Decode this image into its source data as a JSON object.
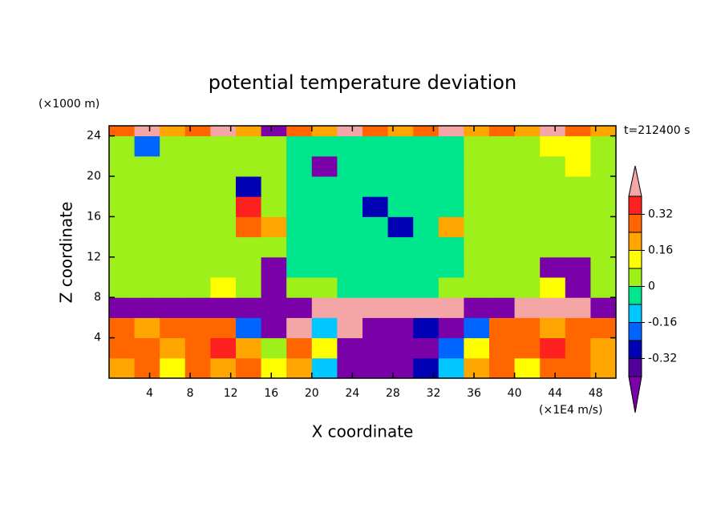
{
  "chart_data": {
    "type": "heatmap",
    "title": "potential temperature deviation",
    "y_unit": "(×1000 m)",
    "x_unit": "(×1E4 m/s)",
    "time_label": "t=212400 s",
    "xlabel": "X coordinate",
    "ylabel": "Z coordinate",
    "xlim": [
      0,
      50
    ],
    "ylim": [
      0,
      25
    ],
    "xticks": [
      4,
      8,
      12,
      16,
      20,
      24,
      28,
      32,
      36,
      40,
      44,
      48
    ],
    "yticks": [
      4,
      8,
      12,
      16,
      20,
      24
    ],
    "x": [
      1.25,
      3.75,
      6.25,
      8.75,
      11.25,
      13.75,
      16.25,
      18.75,
      21.25,
      23.75,
      26.25,
      28.75,
      31.25,
      33.75,
      36.25,
      38.75,
      41.25,
      43.75,
      46.25,
      48.75
    ],
    "y": [
      1,
      3,
      5,
      7,
      9,
      11,
      13,
      15,
      17,
      19,
      21,
      23,
      25
    ],
    "z": [
      [
        0.2,
        0.28,
        0.12,
        0.3,
        0.2,
        0.25,
        0.1,
        0.2,
        -0.1,
        -0.45,
        -0.45,
        -0.45,
        -0.3,
        -0.15,
        0.2,
        0.28,
        0.15,
        0.3,
        0.25,
        0.2
      ],
      [
        0.25,
        0.3,
        0.2,
        0.28,
        0.35,
        0.2,
        0.05,
        0.25,
        0.1,
        -0.45,
        -0.45,
        -0.45,
        -0.45,
        -0.2,
        0.15,
        0.3,
        0.25,
        0.35,
        0.3,
        0.22
      ],
      [
        0.3,
        0.2,
        0.28,
        0.3,
        0.25,
        -0.2,
        -0.45,
        0.45,
        -0.1,
        0.45,
        -0.45,
        -0.45,
        -0.3,
        -0.45,
        -0.2,
        0.25,
        0.3,
        0.2,
        0.3,
        0.28
      ],
      [
        -0.45,
        -0.45,
        -0.45,
        -0.45,
        -0.45,
        -0.45,
        -0.45,
        -0.45,
        0.45,
        0.45,
        0.45,
        0.45,
        0.45,
        0.45,
        -0.45,
        -0.45,
        0.45,
        0.45,
        0.45,
        -0.45
      ],
      [
        0.04,
        0.04,
        0.04,
        0.04,
        0.12,
        0.04,
        -0.45,
        0.04,
        0.04,
        -0.04,
        -0.04,
        -0.04,
        -0.04,
        0.04,
        0.04,
        0.04,
        0.04,
        0.12,
        -0.45,
        0.04
      ],
      [
        0.04,
        0.04,
        0.04,
        0.04,
        0.04,
        0.04,
        -0.45,
        -0.04,
        -0.04,
        -0.04,
        -0.04,
        -0.04,
        -0.04,
        -0.04,
        0.04,
        0.04,
        0.04,
        -0.45,
        -0.45,
        0.04
      ],
      [
        0.04,
        0.04,
        0.04,
        0.04,
        0.04,
        0.04,
        0.04,
        -0.04,
        -0.04,
        -0.04,
        -0.04,
        -0.04,
        -0.04,
        -0.04,
        0.04,
        0.04,
        0.04,
        0.04,
        0.04,
        0.04
      ],
      [
        0.04,
        0.04,
        0.04,
        0.04,
        0.04,
        0.3,
        0.2,
        -0.04,
        -0.04,
        -0.04,
        -0.04,
        -0.3,
        -0.04,
        0.2,
        0.04,
        0.04,
        0.04,
        0.04,
        0.04,
        0.04
      ],
      [
        0.04,
        0.04,
        0.04,
        0.04,
        0.04,
        0.35,
        0.04,
        -0.04,
        -0.04,
        -0.04,
        -0.3,
        -0.04,
        -0.04,
        -0.04,
        0.04,
        0.04,
        0.04,
        0.04,
        0.04,
        0.04
      ],
      [
        0.04,
        0.04,
        0.04,
        0.04,
        0.04,
        -0.3,
        0.04,
        -0.04,
        -0.04,
        -0.04,
        -0.04,
        -0.04,
        -0.04,
        -0.04,
        0.04,
        0.04,
        0.04,
        0.04,
        0.04,
        0.04
      ],
      [
        0.04,
        0.04,
        0.04,
        0.04,
        0.04,
        0.04,
        0.04,
        -0.04,
        -0.45,
        -0.04,
        -0.04,
        -0.04,
        -0.04,
        -0.04,
        0.04,
        0.04,
        0.04,
        0.04,
        0.12,
        0.04
      ],
      [
        0.04,
        -0.2,
        0.04,
        0.04,
        0.04,
        0.04,
        0.04,
        -0.04,
        -0.04,
        -0.04,
        -0.04,
        -0.04,
        -0.04,
        -0.04,
        0.04,
        0.04,
        0.04,
        0.12,
        0.12,
        0.04
      ],
      [
        0.3,
        0.45,
        0.2,
        0.3,
        0.45,
        0.2,
        -0.45,
        0.3,
        0.2,
        0.45,
        0.3,
        0.2,
        0.3,
        0.45,
        0.2,
        0.3,
        0.2,
        0.45,
        0.3,
        0.2
      ]
    ],
    "levels": [
      -0.4,
      -0.32,
      -0.24,
      -0.16,
      -0.08,
      0,
      0.08,
      0.16,
      0.24,
      0.32,
      0.4
    ],
    "colors": [
      "#7a00a8",
      "#52009a",
      "#0000b4",
      "#0064ff",
      "#00c8ff",
      "#00e68c",
      "#9ef01a",
      "#ffff00",
      "#ffa500",
      "#ff6600",
      "#ff2020",
      "#f4a6a6"
    ],
    "colorbar_ticks": [
      -0.32,
      -0.16,
      0,
      0.16,
      0.32
    ]
  }
}
